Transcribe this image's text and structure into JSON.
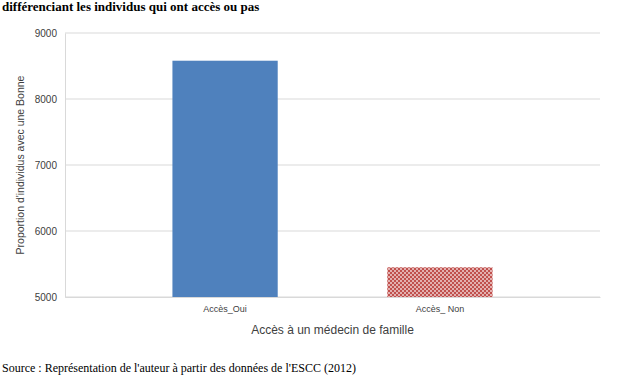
{
  "chart_data": {
    "type": "bar",
    "title": "différenciant les individus qui ont accès ou pas",
    "x_label": "Accès à un médecin de famille",
    "y_label": "Proportion d'individus avec une Bonne",
    "source": "Source : Représentation de l'auteur à partir des données de l'ESCC (2012)",
    "categories": [
      "Accès_Oui",
      "Accès_ Non"
    ],
    "values": [
      8580,
      5450
    ],
    "colors": [
      "#4f81bd",
      "#c0504d"
    ],
    "ylim": [
      5000,
      9000
    ],
    "yticks": [
      5000,
      6000,
      7000,
      8000,
      9000
    ],
    "grid": true
  }
}
